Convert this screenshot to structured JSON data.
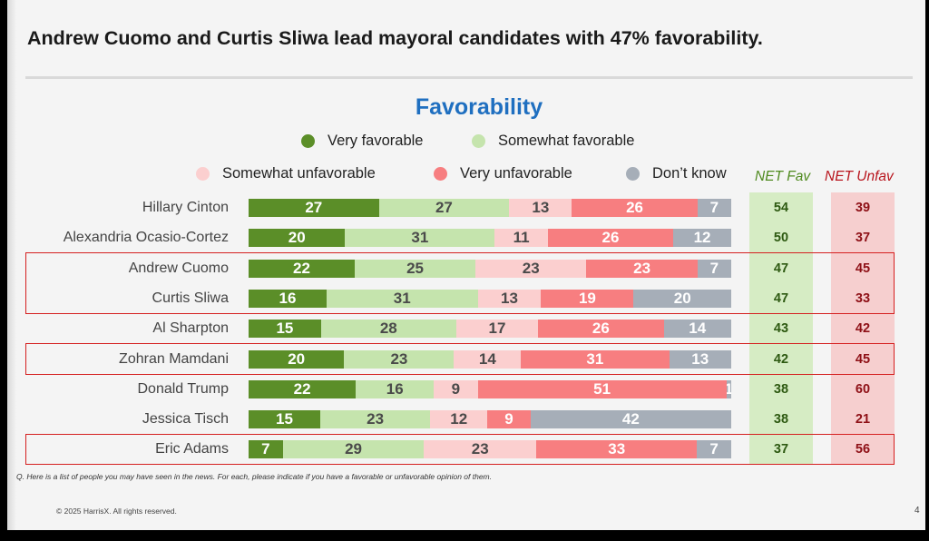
{
  "headline": "Andrew Cuomo and Curtis Sliwa lead mayoral candidates with 47% favorability.",
  "footnote": "Q. Here is a list of people you may have seen in the news. For each, please indicate if you have a favorable or unfavorable opinion of them.",
  "copyright": "© 2025 HarrisX. All rights reserved.",
  "page_number": "4",
  "chart_data": {
    "type": "bar",
    "stacked": true,
    "orientation": "horizontal",
    "title": "Favorability",
    "categories": [
      "Hillary Cinton",
      "Alexandria Ocasio-Cortez",
      "Andrew Cuomo",
      "Curtis Sliwa",
      "Al Sharpton",
      "Zohran Mamdani",
      "Donald Trump",
      "Jessica Tisch",
      "Eric Adams"
    ],
    "series": [
      {
        "name": "Very favorable",
        "color": "#5b8e28",
        "values": [
          27,
          20,
          22,
          16,
          15,
          20,
          22,
          15,
          7
        ]
      },
      {
        "name": "Somewhat favorable",
        "color": "#c5e4ad",
        "values": [
          27,
          31,
          25,
          31,
          28,
          23,
          16,
          23,
          29
        ]
      },
      {
        "name": "Somewhat unfavorable",
        "color": "#fbcfcf",
        "values": [
          13,
          11,
          23,
          13,
          17,
          14,
          9,
          12,
          23
        ]
      },
      {
        "name": "Very unfavorable",
        "color": "#f77e80",
        "values": [
          26,
          26,
          23,
          19,
          26,
          31,
          51,
          9,
          33
        ]
      },
      {
        "name": "Don’t know",
        "color": "#a6aeb8",
        "values": [
          7,
          12,
          7,
          20,
          14,
          13,
          1,
          42,
          7
        ]
      }
    ],
    "net_fav": {
      "label": "NET Fav",
      "color": "#4f8a1f",
      "values": [
        54,
        50,
        47,
        47,
        43,
        42,
        38,
        38,
        37
      ]
    },
    "net_unfav": {
      "label": "NET Unfav",
      "color": "#b8141c",
      "values": [
        39,
        37,
        45,
        33,
        42,
        45,
        60,
        21,
        56
      ]
    },
    "highlighted_rows": [
      "Andrew Cuomo",
      "Curtis Sliwa",
      "Zohran Mamdani",
      "Eric Adams"
    ],
    "legend_position": "top",
    "grid": false
  }
}
